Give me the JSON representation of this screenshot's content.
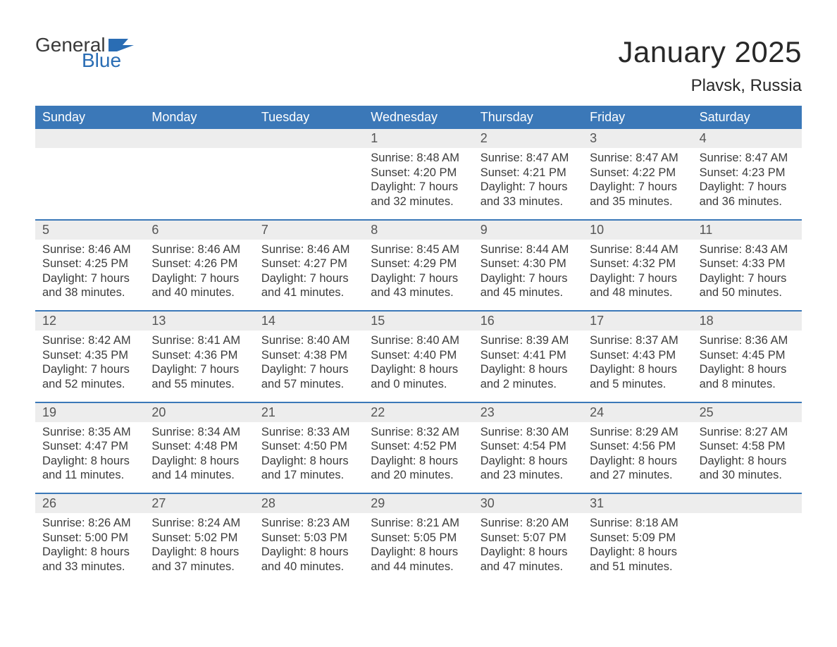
{
  "brand": {
    "general": "General",
    "blue": "Blue"
  },
  "title": "January 2025",
  "location": "Plavsk, Russia",
  "colors": {
    "header_bg": "#3b78b8",
    "header_text": "#ffffff",
    "daynum_bg": "#ededed",
    "daynum_text": "#555555",
    "body_text": "#3c3c3c",
    "rule": "#3b78b8",
    "logo_blue": "#2a6db4",
    "logo_dark": "#3a3a3a",
    "page_bg": "#ffffff"
  },
  "weekdays": [
    "Sunday",
    "Monday",
    "Tuesday",
    "Wednesday",
    "Thursday",
    "Friday",
    "Saturday"
  ],
  "labels": {
    "sunrise_prefix": "Sunrise: ",
    "sunset_prefix": "Sunset: ",
    "daylight_prefix": "Daylight: ",
    "and": "and ",
    "hours_word": " hours",
    "minutes_word": " minutes."
  },
  "weeks": [
    [
      null,
      null,
      null,
      {
        "n": "1",
        "sr": "8:48 AM",
        "ss": "4:20 PM",
        "dh": "7",
        "dm": "32"
      },
      {
        "n": "2",
        "sr": "8:47 AM",
        "ss": "4:21 PM",
        "dh": "7",
        "dm": "33"
      },
      {
        "n": "3",
        "sr": "8:47 AM",
        "ss": "4:22 PM",
        "dh": "7",
        "dm": "35"
      },
      {
        "n": "4",
        "sr": "8:47 AM",
        "ss": "4:23 PM",
        "dh": "7",
        "dm": "36"
      }
    ],
    [
      {
        "n": "5",
        "sr": "8:46 AM",
        "ss": "4:25 PM",
        "dh": "7",
        "dm": "38"
      },
      {
        "n": "6",
        "sr": "8:46 AM",
        "ss": "4:26 PM",
        "dh": "7",
        "dm": "40"
      },
      {
        "n": "7",
        "sr": "8:46 AM",
        "ss": "4:27 PM",
        "dh": "7",
        "dm": "41"
      },
      {
        "n": "8",
        "sr": "8:45 AM",
        "ss": "4:29 PM",
        "dh": "7",
        "dm": "43"
      },
      {
        "n": "9",
        "sr": "8:44 AM",
        "ss": "4:30 PM",
        "dh": "7",
        "dm": "45"
      },
      {
        "n": "10",
        "sr": "8:44 AM",
        "ss": "4:32 PM",
        "dh": "7",
        "dm": "48"
      },
      {
        "n": "11",
        "sr": "8:43 AM",
        "ss": "4:33 PM",
        "dh": "7",
        "dm": "50"
      }
    ],
    [
      {
        "n": "12",
        "sr": "8:42 AM",
        "ss": "4:35 PM",
        "dh": "7",
        "dm": "52"
      },
      {
        "n": "13",
        "sr": "8:41 AM",
        "ss": "4:36 PM",
        "dh": "7",
        "dm": "55"
      },
      {
        "n": "14",
        "sr": "8:40 AM",
        "ss": "4:38 PM",
        "dh": "7",
        "dm": "57"
      },
      {
        "n": "15",
        "sr": "8:40 AM",
        "ss": "4:40 PM",
        "dh": "8",
        "dm": "0"
      },
      {
        "n": "16",
        "sr": "8:39 AM",
        "ss": "4:41 PM",
        "dh": "8",
        "dm": "2"
      },
      {
        "n": "17",
        "sr": "8:37 AM",
        "ss": "4:43 PM",
        "dh": "8",
        "dm": "5"
      },
      {
        "n": "18",
        "sr": "8:36 AM",
        "ss": "4:45 PM",
        "dh": "8",
        "dm": "8"
      }
    ],
    [
      {
        "n": "19",
        "sr": "8:35 AM",
        "ss": "4:47 PM",
        "dh": "8",
        "dm": "11"
      },
      {
        "n": "20",
        "sr": "8:34 AM",
        "ss": "4:48 PM",
        "dh": "8",
        "dm": "14"
      },
      {
        "n": "21",
        "sr": "8:33 AM",
        "ss": "4:50 PM",
        "dh": "8",
        "dm": "17"
      },
      {
        "n": "22",
        "sr": "8:32 AM",
        "ss": "4:52 PM",
        "dh": "8",
        "dm": "20"
      },
      {
        "n": "23",
        "sr": "8:30 AM",
        "ss": "4:54 PM",
        "dh": "8",
        "dm": "23"
      },
      {
        "n": "24",
        "sr": "8:29 AM",
        "ss": "4:56 PM",
        "dh": "8",
        "dm": "27"
      },
      {
        "n": "25",
        "sr": "8:27 AM",
        "ss": "4:58 PM",
        "dh": "8",
        "dm": "30"
      }
    ],
    [
      {
        "n": "26",
        "sr": "8:26 AM",
        "ss": "5:00 PM",
        "dh": "8",
        "dm": "33"
      },
      {
        "n": "27",
        "sr": "8:24 AM",
        "ss": "5:02 PM",
        "dh": "8",
        "dm": "37"
      },
      {
        "n": "28",
        "sr": "8:23 AM",
        "ss": "5:03 PM",
        "dh": "8",
        "dm": "40"
      },
      {
        "n": "29",
        "sr": "8:21 AM",
        "ss": "5:05 PM",
        "dh": "8",
        "dm": "44"
      },
      {
        "n": "30",
        "sr": "8:20 AM",
        "ss": "5:07 PM",
        "dh": "8",
        "dm": "47"
      },
      {
        "n": "31",
        "sr": "8:18 AM",
        "ss": "5:09 PM",
        "dh": "8",
        "dm": "51"
      },
      null
    ]
  ]
}
